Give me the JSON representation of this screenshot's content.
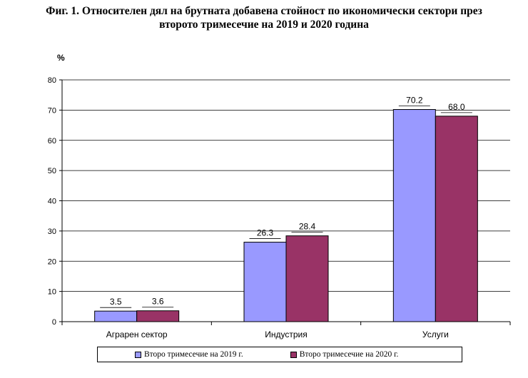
{
  "title_line1": "Фиг. 1. Относителен дял на брутната добавена стойност по икономически сектори през",
  "title_line2": "второто тримесечие на 2019 и 2020 година",
  "chart_data": {
    "type": "bar",
    "title": "Фиг. 1. Относителен дял на брутната добавена стойност по икономически сектори през второто тримесечие на 2019 и 2020 година",
    "ylabel": "%",
    "xlabel": "",
    "ylim": [
      0,
      80
    ],
    "yticks": [
      0,
      10,
      20,
      30,
      40,
      50,
      60,
      70,
      80
    ],
    "grid": true,
    "legend": "bottom",
    "categories": [
      "Аграрен сектор",
      "Индустрия",
      "Услуги"
    ],
    "series": [
      {
        "name": "Второ тримесечие на 2019 г.",
        "values": [
          3.5,
          26.3,
          70.2
        ],
        "labels": [
          "3.5",
          "26.3",
          "70.2"
        ],
        "color": "#9999ff"
      },
      {
        "name": "Второ тримесечие на 2020 г.",
        "values": [
          3.6,
          28.4,
          68.0
        ],
        "labels": [
          "3.6",
          "28.4",
          "68.0"
        ],
        "color": "#993366"
      }
    ]
  }
}
